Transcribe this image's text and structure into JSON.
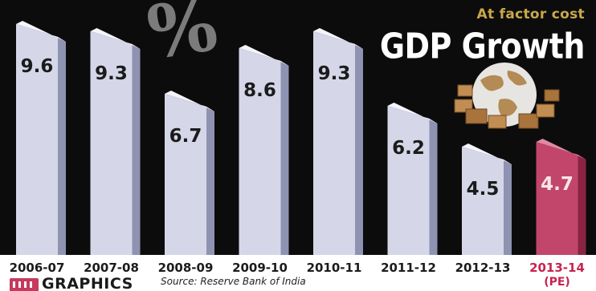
{
  "header": {
    "subtitle": "At factor cost",
    "title": "GDP Growth",
    "percent_symbol": "%"
  },
  "footer": {
    "source": "Source: Reserve Bank of India",
    "graphics_label": "GRAPHICS"
  },
  "colors": {
    "panel_background": "#0c0c0c",
    "bar_face": "#d5d7e8",
    "bar_side": "#8f93b2",
    "bar_top": "#f4f4fb",
    "highlight_face": "#c2466c",
    "highlight_side": "#8a2445",
    "highlight_top": "#e08aa4",
    "subtitle": "#c9a84a",
    "highlight_label": "#c8234f"
  },
  "chart_data": {
    "type": "bar",
    "title": "GDP Growth",
    "subtitle": "At factor cost",
    "categories": [
      "2006-07",
      "2007-08",
      "2008-09",
      "2009-10",
      "2010-11",
      "2011-12",
      "2012-13",
      "2013-14"
    ],
    "category_notes": [
      "",
      "",
      "",
      "",
      "",
      "",
      "",
      "(PE)"
    ],
    "series": [
      {
        "values": [
          9.6,
          9.3,
          6.7,
          8.6,
          9.3,
          6.2,
          4.5,
          4.7
        ]
      }
    ],
    "value_labels": [
      "9.6",
      "9.3",
      "6.7",
      "8.6",
      "9.3",
      "6.2",
      "4.5",
      "4.7"
    ],
    "highlight_index": 7,
    "ylim": [
      0,
      10
    ],
    "unit": "%",
    "grid": false,
    "legend": "none"
  }
}
